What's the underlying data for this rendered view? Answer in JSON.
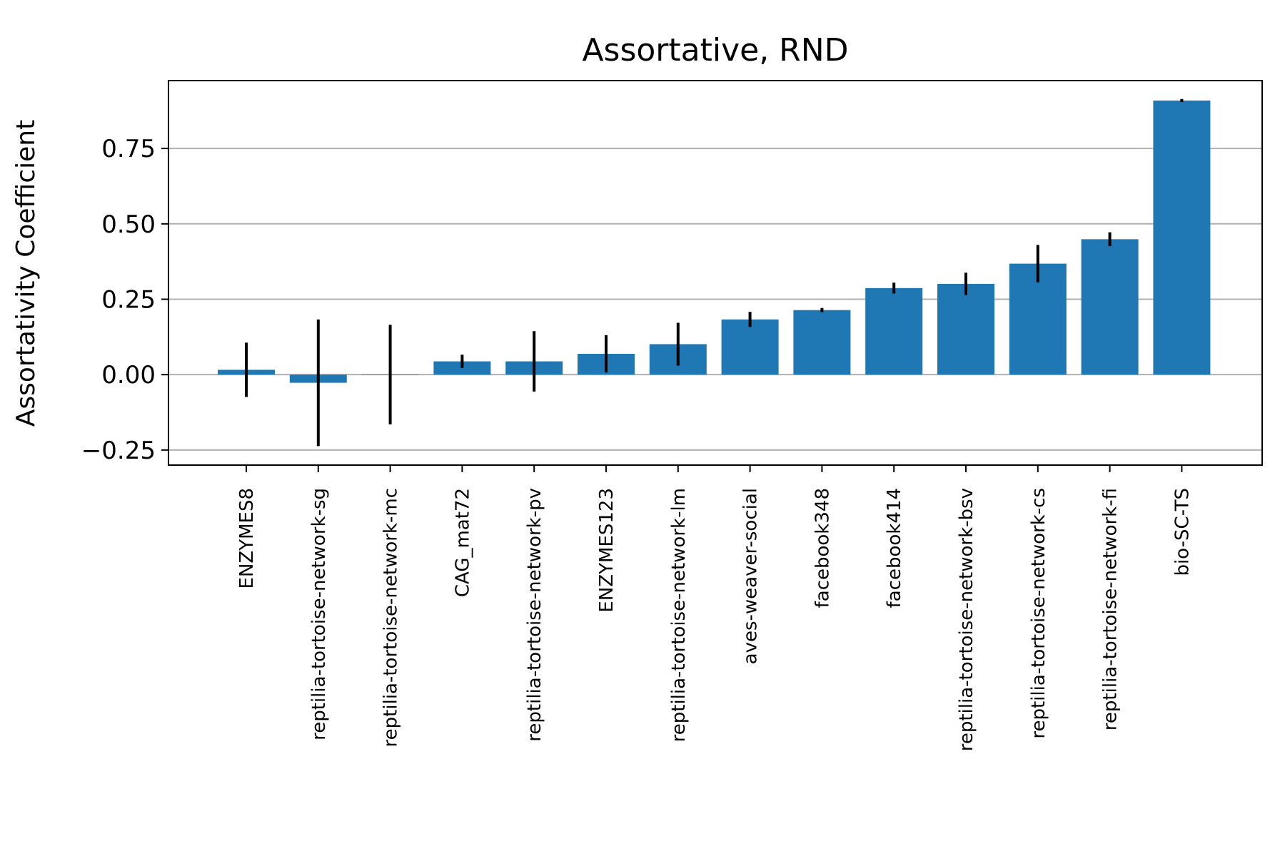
{
  "chart_data": {
    "type": "bar",
    "title": "Assortative, RND",
    "xlabel": "",
    "ylabel": "Assortativity Coefficient",
    "ylim": [
      -0.3,
      0.975
    ],
    "yticks": [
      -0.25,
      0.0,
      0.25,
      0.5,
      0.75
    ],
    "ytick_labels": [
      "−0.25",
      "0.00",
      "0.25",
      "0.50",
      "0.75"
    ],
    "grid": "y",
    "bar_color": "#1f77b4",
    "error_color": "#000000",
    "categories": [
      "ENZYMES8",
      "reptilia-tortoise-network-sg",
      "reptilia-tortoise-network-mc",
      "CAG_mat72",
      "reptilia-tortoise-network-pv",
      "ENZYMES123",
      "reptilia-tortoise-network-lm",
      "aves-weaver-social",
      "facebook348",
      "facebook414",
      "reptilia-tortoise-network-bsv",
      "reptilia-tortoise-network-cs",
      "reptilia-tortoise-network-fi",
      "bio-SC-TS"
    ],
    "values": [
      0.016,
      -0.027,
      0.0,
      0.044,
      0.044,
      0.069,
      0.101,
      0.183,
      0.214,
      0.287,
      0.301,
      0.368,
      0.449,
      0.909
    ],
    "errors": [
      0.09,
      0.21,
      0.165,
      0.022,
      0.1,
      0.062,
      0.071,
      0.025,
      0.007,
      0.018,
      0.037,
      0.062,
      0.023,
      0.005
    ]
  }
}
